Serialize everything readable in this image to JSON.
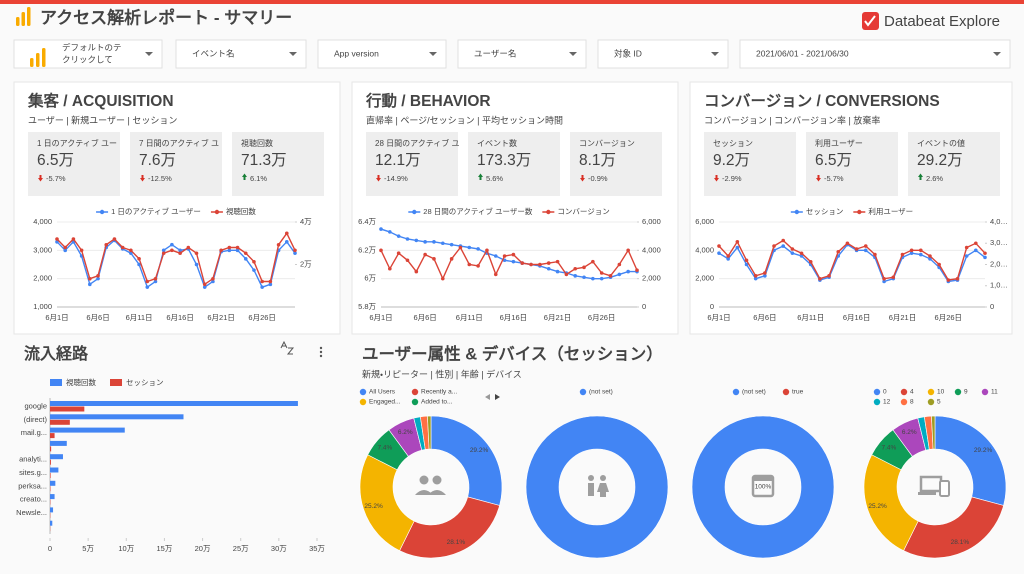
{
  "header": {
    "title": "アクセス解析レポート - サマリー",
    "brand": "Databeat Explore"
  },
  "filters": [
    {
      "lines": [
        "デフォルトのテ",
        "クリックして"
      ]
    },
    {
      "label": "イベント名"
    },
    {
      "label": "App version"
    },
    {
      "label": "ユーザー名"
    },
    {
      "label": "対象 ID"
    },
    {
      "label": "2021/06/01 - 2021/06/30"
    }
  ],
  "panels": [
    {
      "title": "集客 / ACQUISITION",
      "subtitle": "ユーザー | 新規ユーザー | セッション",
      "cards": [
        {
          "label": "1 日のアクティブ ユー",
          "value": "6.5万",
          "delta": "-5.7%",
          "trend": "down"
        },
        {
          "label": "7 日間のアクティブ ユ",
          "value": "7.6万",
          "delta": "-12.5%",
          "trend": "down"
        },
        {
          "label": "視聴回数",
          "value": "71.3万",
          "delta": "6.1%",
          "trend": "up"
        }
      ]
    },
    {
      "title": "行動 / BEHAVIOR",
      "subtitle": "直帰率 | ページ/セッション | 平均セッション時間",
      "cards": [
        {
          "label": "28 日間のアクティブ ユ",
          "value": "12.1万",
          "delta": "-14.9%",
          "trend": "down"
        },
        {
          "label": "イベント数",
          "value": "173.3万",
          "delta": "5.6%",
          "trend": "up"
        },
        {
          "label": "コンバージョン",
          "value": "8.1万",
          "delta": "-0.9%",
          "trend": "down"
        }
      ]
    },
    {
      "title": "コンバージョン / CONVERSIONS",
      "subtitle": "コンバージョン | コンバージョン率 | 放棄率",
      "cards": [
        {
          "label": "セッション",
          "value": "9.2万",
          "delta": "-2.9%",
          "trend": "down"
        },
        {
          "label": "利用ユーザー",
          "value": "6.5万",
          "delta": "-5.7%",
          "trend": "down"
        },
        {
          "label": "イベントの値",
          "value": "29.2万",
          "delta": "2.6%",
          "trend": "up"
        }
      ]
    }
  ],
  "sections": {
    "sources": "流入経路",
    "demographics": {
      "title": "ユーザー属性 & デバイス（セッション）",
      "subtitle": "新規・リピーター | 性別 | 年齢 | デバイス"
    }
  },
  "chart_data": [
    {
      "type": "line",
      "grid": true,
      "categories": [
        "6月1日",
        null,
        null,
        null,
        null,
        "6月6日",
        null,
        null,
        null,
        null,
        "6月11日",
        null,
        null,
        null,
        null,
        "6月16日",
        null,
        null,
        null,
        null,
        "6月21日",
        null,
        null,
        null,
        null,
        "6月26日",
        null,
        null,
        null,
        null
      ],
      "ylim": [
        1000,
        4000
      ],
      "yticks": [
        {
          "value": 1000,
          "label": "1,000"
        },
        {
          "value": 2000,
          "label": "2,000"
        },
        {
          "value": 3000,
          "label": "3,000"
        },
        {
          "value": 4000,
          "label": "4,000"
        }
      ],
      "y2lim": [
        0,
        40000
      ],
      "y2ticks": [
        {
          "value": 20000,
          "label": "2万"
        },
        {
          "value": 40000,
          "label": "4万"
        }
      ],
      "series": [
        {
          "name": "1 日のアクティブ ユーザー",
          "color": "#4285f4",
          "values": [
            3300,
            3000,
            3300,
            2800,
            1800,
            2000,
            3100,
            3350,
            3050,
            2900,
            2500,
            1700,
            1900,
            3000,
            3200,
            3000,
            3050,
            2500,
            1700,
            1900,
            2950,
            3000,
            3000,
            2700,
            2300,
            1700,
            1800,
            3000,
            3300,
            2900
          ]
        },
        {
          "name": "視聴回数",
          "color": "#db4437",
          "axis": "y2",
          "values": [
            32000,
            28000,
            32000,
            26700,
            13300,
            14700,
            29300,
            32000,
            28000,
            26700,
            22700,
            12000,
            13300,
            25300,
            26700,
            25300,
            28000,
            25300,
            10700,
            13300,
            26700,
            28000,
            28000,
            25300,
            21300,
            12000,
            12000,
            29300,
            34700,
            26700
          ]
        }
      ]
    },
    {
      "type": "line",
      "grid": true,
      "categories": [
        "6月1日",
        null,
        null,
        null,
        null,
        "6月6日",
        null,
        null,
        null,
        null,
        "6月11日",
        null,
        null,
        null,
        null,
        "6月16日",
        null,
        null,
        null,
        null,
        "6月21日",
        null,
        null,
        null,
        null,
        "6月26日",
        null,
        null,
        null,
        null
      ],
      "ylim": [
        58000,
        64000
      ],
      "yticks": [
        {
          "value": 58000,
          "label": "5.8万"
        },
        {
          "value": 60000,
          "label": "6万"
        },
        {
          "value": 62000,
          "label": "6.2万"
        },
        {
          "value": 64000,
          "label": "6.4万"
        }
      ],
      "y2lim": [
        0,
        6000
      ],
      "y2ticks": [
        0,
        {
          "value": 2000,
          "label": "2,000"
        },
        {
          "value": 4000,
          "label": "4,000"
        },
        {
          "value": 6000,
          "label": "6,000"
        }
      ],
      "series": [
        {
          "name": "28 日間のアクティブ ユーザー数",
          "color": "#4285f4",
          "values": [
            63500,
            63300,
            63000,
            62800,
            62700,
            62600,
            62600,
            62500,
            62400,
            62300,
            62200,
            62100,
            61800,
            61600,
            61300,
            61200,
            61100,
            61000,
            60900,
            60700,
            60500,
            60400,
            60200,
            60100,
            60000,
            60000,
            60100,
            60300,
            60500,
            60500
          ]
        },
        {
          "name": "コンバージョン",
          "color": "#db4437",
          "axis": "y2",
          "values": [
            4000,
            2700,
            3800,
            3300,
            2500,
            3700,
            3400,
            2000,
            3400,
            4200,
            3000,
            2900,
            4000,
            2300,
            3600,
            3700,
            3100,
            3000,
            3000,
            3100,
            3200,
            2300,
            2700,
            2800,
            3200,
            2400,
            2200,
            3000,
            4000,
            2600
          ]
        }
      ]
    },
    {
      "type": "line",
      "grid": true,
      "categories": [
        "6月1日",
        null,
        null,
        null,
        null,
        "6月6日",
        null,
        null,
        null,
        null,
        "6月11日",
        null,
        null,
        null,
        null,
        "6月16日",
        null,
        null,
        null,
        null,
        "6月21日",
        null,
        null,
        null,
        null,
        "6月26日",
        null,
        null,
        null,
        null
      ],
      "ylim": [
        0,
        6000
      ],
      "yticks": [
        0,
        {
          "value": 2000,
          "label": "2,000"
        },
        {
          "value": 4000,
          "label": "4,000"
        },
        {
          "value": 6000,
          "label": "6,000"
        }
      ],
      "y2lim": [
        0,
        4000
      ],
      "y2ticks": [
        0,
        {
          "value": 1000,
          "label": "1,0…"
        },
        {
          "value": 2000,
          "label": "2,0…"
        },
        {
          "value": 3000,
          "label": "3,0…"
        },
        {
          "value": 4000,
          "label": "4,0…"
        }
      ],
      "series": [
        {
          "name": "セッション",
          "color": "#4285f4",
          "values": [
            3800,
            3400,
            4200,
            3000,
            2000,
            2200,
            4000,
            4300,
            3800,
            3600,
            3000,
            1900,
            2100,
            3600,
            4400,
            4000,
            4000,
            3500,
            1800,
            2000,
            3500,
            3800,
            3700,
            3400,
            2800,
            1800,
            1900,
            3600,
            4000,
            3500
          ]
        },
        {
          "name": "利用ユーザー",
          "color": "#db4437",
          "axis": "y2",
          "values": [
            2870,
            2400,
            3070,
            2200,
            1470,
            1600,
            2870,
            3130,
            2730,
            2530,
            2130,
            1330,
            1470,
            2600,
            3000,
            2730,
            2870,
            2470,
            1330,
            1400,
            2470,
            2670,
            2670,
            2400,
            2000,
            1270,
            1330,
            2800,
            3000,
            2530
          ]
        }
      ]
    },
    {
      "type": "bar",
      "orientation": "horizontal",
      "categories": [
        "google",
        "(direct)",
        "mail.g...",
        null,
        "analyti...",
        "sites.g...",
        "perksa...",
        "creato...",
        "Newsle...",
        null
      ],
      "xlim": [
        0,
        350000
      ],
      "xticks": [
        0,
        {
          "value": 50000,
          "label": "5万"
        },
        {
          "value": 100000,
          "label": "10万"
        },
        {
          "value": 150000,
          "label": "15万"
        },
        {
          "value": 200000,
          "label": "20万"
        },
        {
          "value": 250000,
          "label": "25万"
        },
        {
          "value": 300000,
          "label": "30万"
        },
        {
          "value": 350000,
          "label": "35万"
        }
      ],
      "series": [
        {
          "name": "視聴回数",
          "color": "#4285f4",
          "values": [
            325000,
            175000,
            98000,
            22000,
            17000,
            11000,
            7000,
            6000,
            4000,
            3000
          ]
        },
        {
          "name": "セッション",
          "color": "#db4437",
          "values": [
            45000,
            26000,
            6000,
            1500,
            1200,
            800,
            600,
            500,
            400,
            300
          ]
        }
      ]
    },
    {
      "type": "pie",
      "categories": [
        "All Users",
        "Recently a...",
        "Engaged...",
        "Added to...",
        null,
        null,
        null,
        null
      ],
      "values": [
        29.2,
        28.1,
        25.2,
        7.4,
        6.2,
        1.5,
        1.6,
        0.8
      ],
      "value_labels": [
        "29.2%",
        "28.1%",
        "25.2%",
        "7.4%",
        "6.2%",
        null,
        null,
        null
      ],
      "colors": [
        "#4285f4",
        "#db4437",
        "#f4b400",
        "#0f9d58",
        "#ab47bc",
        "#00acc1",
        "#ff7043",
        "#9e9d24"
      ]
    },
    {
      "type": "pie",
      "categories": [
        "(not set)"
      ],
      "values": [
        100
      ],
      "value_labels": [
        null
      ],
      "colors": [
        "#4285f4"
      ]
    },
    {
      "type": "pie",
      "categories": [
        "(not set)",
        "true"
      ],
      "values": [
        100,
        0
      ],
      "value_labels": [
        "100%",
        null
      ],
      "colors": [
        "#4285f4",
        "#db4437"
      ]
    },
    {
      "type": "pie",
      "categories": [
        "0",
        "4",
        "10",
        "9",
        "11",
        "12",
        "8",
        "5"
      ],
      "values": [
        29.2,
        28.1,
        25.2,
        7.4,
        6.2,
        1.5,
        1.6,
        0.8
      ],
      "value_labels": [
        "29.2%",
        "28.1%",
        "25.2%",
        "7.4%",
        "6.2%",
        null,
        null,
        null
      ],
      "colors": [
        "#4285f4",
        "#db4437",
        "#f4b400",
        "#0f9d58",
        "#ab47bc",
        "#00acc1",
        "#ff7043",
        "#9e9d24"
      ]
    }
  ]
}
